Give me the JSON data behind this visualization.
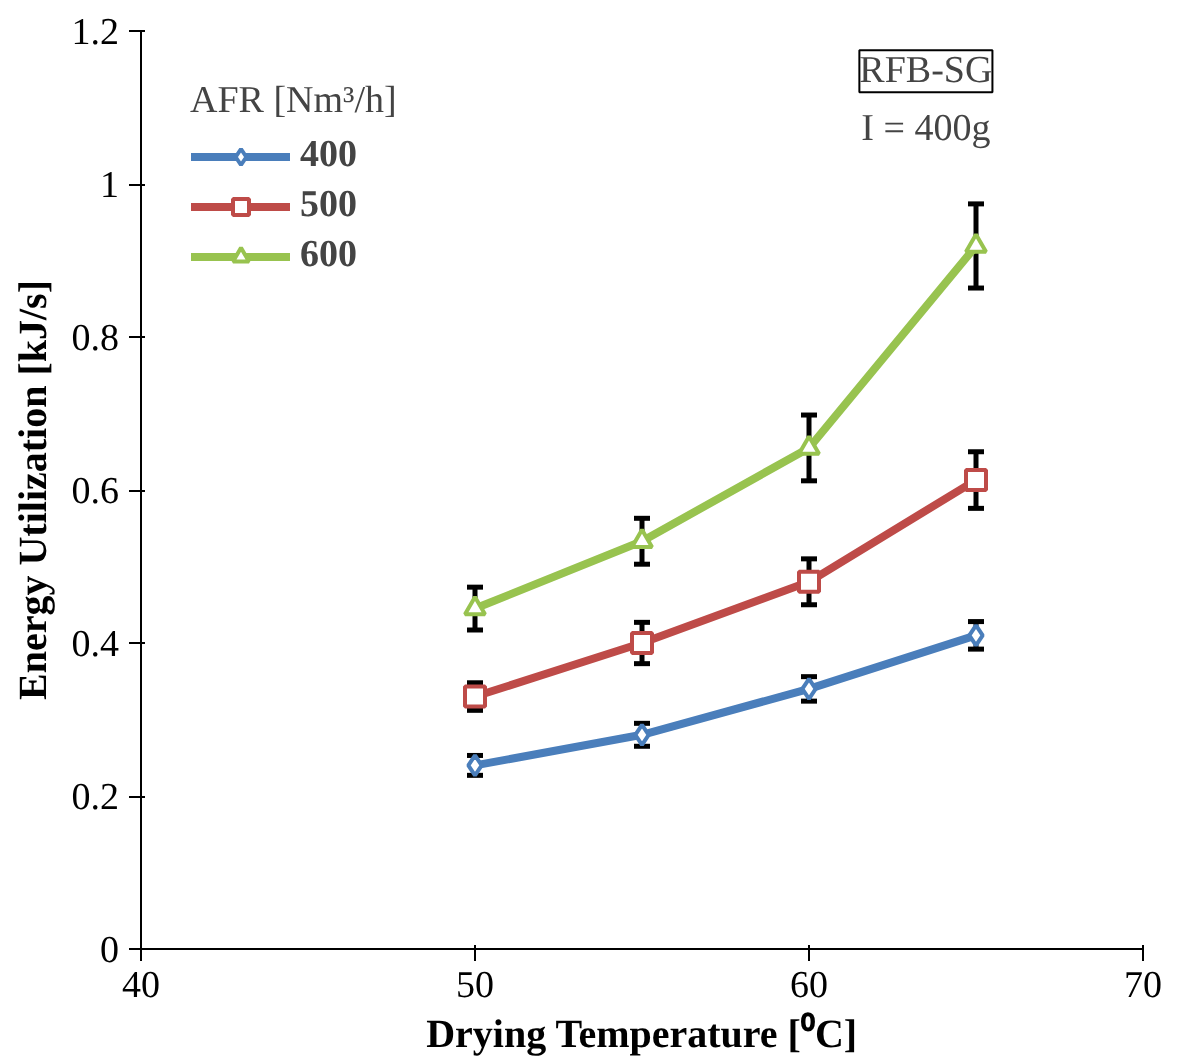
{
  "chart_data": {
    "type": "line",
    "xlabel": "Drying Temperature [⁰C]",
    "ylabel": "Energy Utilization [kJ/s]",
    "legend_title": "AFR [Nm³/h]",
    "x": [
      50,
      55,
      60,
      65
    ],
    "series": [
      {
        "name": "400",
        "color": "#4a7ebb",
        "marker": "diamond",
        "values": [
          0.24,
          0.28,
          0.34,
          0.41
        ],
        "errors": [
          0.013,
          0.015,
          0.016,
          0.018
        ]
      },
      {
        "name": "500",
        "color": "#be4b48",
        "marker": "square",
        "values": [
          0.33,
          0.4,
          0.48,
          0.613
        ],
        "errors": [
          0.018,
          0.027,
          0.03,
          0.037
        ]
      },
      {
        "name": "600",
        "color": "#98c34f",
        "marker": "triangle",
        "values": [
          0.445,
          0.533,
          0.655,
          0.919
        ],
        "errors": [
          0.028,
          0.03,
          0.043,
          0.055
        ]
      }
    ],
    "annotations": [
      "RFB-SG",
      "I = 400g"
    ],
    "xlim": [
      40,
      70
    ],
    "xticks": [
      40,
      50,
      60,
      70
    ],
    "ylim": [
      0,
      1.2
    ],
    "yticks": [
      0,
      0.2,
      0.4,
      0.6,
      0.8,
      1,
      1.2
    ],
    "grid": false,
    "legend": "top left"
  }
}
